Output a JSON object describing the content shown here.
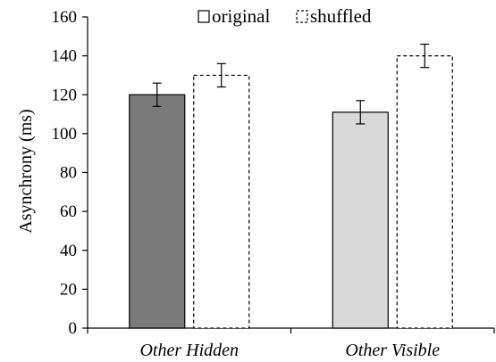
{
  "chart_data": {
    "type": "bar",
    "title": "",
    "xlabel": "",
    "ylabel": "Asynchrony (ms)",
    "ylim": [
      0,
      160
    ],
    "yticks": [
      0,
      20,
      40,
      60,
      80,
      100,
      120,
      140,
      160
    ],
    "grid": false,
    "legend_position": "top",
    "categories": [
      "Other Hidden",
      "Other Visible"
    ],
    "series": [
      {
        "name": "original",
        "values": [
          120,
          111
        ],
        "errors": [
          6,
          6
        ]
      },
      {
        "name": "shuffled",
        "values": [
          130,
          140
        ],
        "errors": [
          6,
          6
        ]
      }
    ],
    "bar_styles": [
      [
        {
          "fill": "#7a7a7a",
          "stroke": "#000000",
          "dashed": false
        },
        {
          "fill": "#ffffff",
          "stroke": "#000000",
          "dashed": true
        }
      ],
      [
        {
          "fill": "#d9d9d9",
          "stroke": "#000000",
          "dashed": false
        },
        {
          "fill": "#ffffff",
          "stroke": "#000000",
          "dashed": true
        }
      ]
    ]
  }
}
